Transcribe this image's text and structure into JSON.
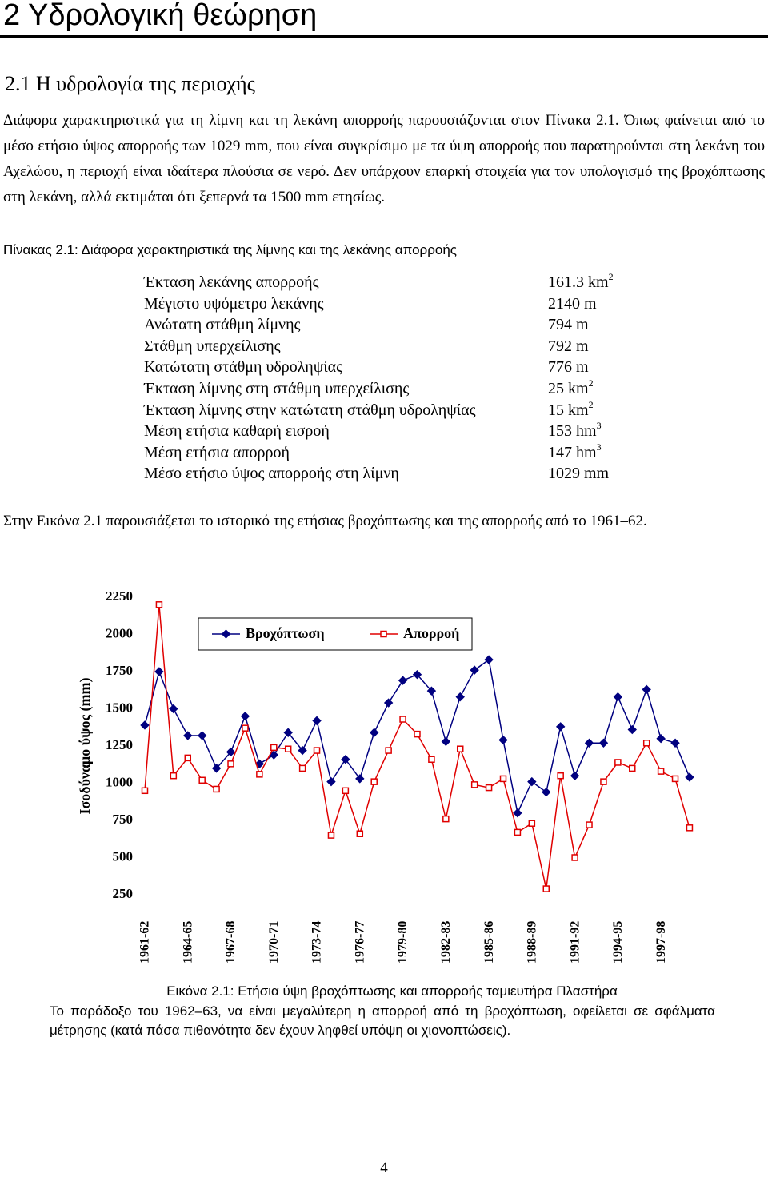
{
  "heading": "2 Υδρολογική θεώρηση",
  "subheading": "2.1 Η υδρολογία της περιοχής",
  "paragraph1": "Διάφορα χαρακτηριστικά για τη λίμνη και τη λεκάνη απορροής παρουσιάζονται στον Πίνακα 2.1. Όπως φαίνεται από το μέσο ετήσιο ύψος απορροής των 1029 mm, που είναι συγκρίσιμο με τα ύψη απορροής που παρατηρούνται στη λεκάνη του Αχελώου, η περιοχή είναι ιδαίτερα πλούσια σε νερό. Δεν υπάρχουν επαρκή στοιχεία για τον υπολογισμό της βροχόπτωσης στη λεκάνη, αλλά εκτιμάται ότι ξεπερνά τα 1500 mm ετησίως.",
  "table": {
    "caption": "Πίνακας 2.1: Διάφορα χαρακτηριστικά της λίμνης και της λεκάνης απορροής",
    "rows": [
      {
        "label": "Έκταση λεκάνης απορροής",
        "value": "161.3 km",
        "sup": "2"
      },
      {
        "label": "Μέγιστο υψόμετρο λεκάνης",
        "value": "2140 m"
      },
      {
        "label": "Ανώτατη στάθμη λίμνης",
        "value": "794 m"
      },
      {
        "label": "Στάθμη υπερχείλισης",
        "value": "792 m"
      },
      {
        "label": "Κατώτατη στάθμη υδροληψίας",
        "value": "776 m"
      },
      {
        "label": "Έκταση λίμνης στη στάθμη υπερχείλισης",
        "value": "25 km",
        "sup": "2"
      },
      {
        "label": "Έκταση λίμνης στην κατώτατη στάθμη υδροληψίας",
        "value": "15 km",
        "sup": "2"
      },
      {
        "label": "Μέση ετήσια καθαρή εισροή",
        "value": "153 hm",
        "sup": "3"
      },
      {
        "label": "Μέση ετήσια απορροή",
        "value": "147 hm",
        "sup": "3"
      },
      {
        "label": "Μέσο ετήσιο ύψος απορροής στη λίμνη",
        "value": "1029 mm"
      }
    ]
  },
  "paragraph2": "Στην Εικόνα 2.1 παρουσιάζεται το ιστορικό της ετήσιας βροχόπτωσης και της απορροής από το 1961–62.",
  "chart_data": {
    "type": "line",
    "y_label": "Ισοδύναμο ύψος (mm)",
    "categories": [
      "1961-62",
      null,
      null,
      "1964-65",
      null,
      null,
      "1967-68",
      null,
      null,
      "1970-71",
      null,
      null,
      "1973-74",
      null,
      null,
      "1976-77",
      null,
      null,
      "1979-80",
      null,
      null,
      "1982-83",
      null,
      null,
      "1985-86",
      null,
      null,
      "1988-89",
      null,
      null,
      "1991-92",
      null,
      null,
      "1994-95",
      null,
      null,
      "1997-98",
      null,
      null
    ],
    "series": [
      {
        "name": "Βροχόπτωση",
        "color": "#000080",
        "marker": "diamond",
        "values": [
          1390,
          1750,
          1500,
          1320,
          1320,
          1100,
          1210,
          1450,
          1130,
          1190,
          1340,
          1220,
          1420,
          1010,
          1160,
          1030,
          1340,
          1540,
          1690,
          1730,
          1620,
          1280,
          1580,
          1760,
          1830,
          1290,
          800,
          1010,
          940,
          1380,
          1050,
          1270,
          1270,
          1580,
          1360,
          1630,
          1300,
          1270,
          1040
        ]
      },
      {
        "name": "Απορροή",
        "color": "#e00000",
        "marker": "square",
        "values": [
          950,
          2200,
          1050,
          1170,
          1020,
          960,
          1130,
          1370,
          1060,
          1240,
          1230,
          1100,
          1220,
          650,
          950,
          660,
          1010,
          1220,
          1430,
          1330,
          1160,
          760,
          1230,
          990,
          970,
          1030,
          670,
          730,
          290,
          1050,
          500,
          720,
          1010,
          1140,
          1100,
          1270,
          1080,
          1030,
          700
        ]
      }
    ],
    "ylim": [
      250,
      2250
    ],
    "yticks": [
      250,
      500,
      750,
      1000,
      1250,
      1500,
      1750,
      2000,
      2250
    ],
    "grid": false,
    "legend": "top"
  },
  "figure_caption": "Εικόνα 2.1: Ετήσια ύψη βροχόπτωσης και απορροής ταμιευτήρα Πλαστήρα",
  "paragraph3": "Το παράδοξο του 1962–63, να είναι μεγαλύτερη η απορροή από τη βροχόπτωση, οφείλεται σε σφάλματα μέτρησης (κατά πάσα πιθανότητα δεν έχουν ληφθεί υπόψη οι χιονοπτώσεις).",
  "page_number": "4"
}
